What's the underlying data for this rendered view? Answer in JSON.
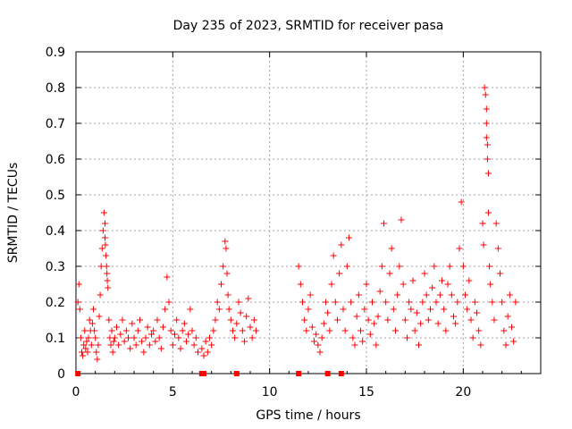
{
  "chart_data": {
    "type": "scatter",
    "title": "Day 235 of 2023, SRMTID for receiver pasa",
    "xlabel": "GPS time / hours",
    "ylabel": "SRMTID / TECUs",
    "xlim": [
      0,
      24
    ],
    "ylim": [
      0,
      0.9
    ],
    "xticks": [
      0,
      5,
      10,
      15,
      20
    ],
    "xtick_labels": [
      "0",
      "5",
      "10",
      "15",
      "20"
    ],
    "yticks": [
      0,
      0.1,
      0.2,
      0.3,
      0.4,
      0.5,
      0.6,
      0.7,
      0.8,
      0.9
    ],
    "ytick_labels": [
      "0",
      "0.1",
      "0.2",
      "0.3",
      "0.4",
      "0.5",
      "0.6",
      "0.7",
      "0.8",
      "0.9"
    ],
    "grid": true,
    "marker": "plus",
    "color": "#ff0000",
    "zero_markers_x": [
      0.1,
      6.5,
      6.6,
      8.3,
      11.5,
      13.0,
      13.7
    ],
    "series": [
      {
        "name": "SRMTID",
        "x": [
          0.1,
          0.15,
          0.2,
          0.25,
          0.3,
          0.35,
          0.4,
          0.45,
          0.5,
          0.55,
          0.6,
          0.65,
          0.7,
          0.75,
          0.8,
          0.85,
          0.9,
          0.95,
          1.0,
          1.05,
          1.1,
          1.15,
          1.2,
          1.25,
          1.3,
          1.35,
          1.4,
          1.45,
          1.5,
          1.5,
          1.52,
          1.55,
          1.58,
          1.6,
          1.62,
          1.65,
          1.7,
          1.75,
          1.8,
          1.85,
          1.9,
          1.95,
          2.0,
          2.1,
          2.2,
          2.3,
          2.4,
          2.5,
          2.6,
          2.7,
          2.8,
          2.9,
          3.0,
          3.1,
          3.2,
          3.3,
          3.4,
          3.5,
          3.6,
          3.7,
          3.8,
          3.9,
          4.0,
          4.1,
          4.2,
          4.3,
          4.4,
          4.5,
          4.6,
          4.7,
          4.8,
          4.9,
          5.0,
          5.1,
          5.2,
          5.3,
          5.4,
          5.5,
          5.6,
          5.7,
          5.8,
          5.9,
          6.0,
          6.1,
          6.2,
          6.3,
          6.5,
          6.6,
          6.7,
          6.8,
          6.9,
          7.0,
          7.1,
          7.2,
          7.3,
          7.4,
          7.5,
          7.6,
          7.7,
          7.75,
          7.8,
          7.85,
          7.9,
          8.0,
          8.1,
          8.2,
          8.3,
          8.4,
          8.5,
          8.6,
          8.7,
          8.8,
          8.9,
          9.0,
          9.1,
          9.2,
          9.3,
          11.5,
          11.6,
          11.7,
          11.8,
          11.9,
          12.0,
          12.1,
          12.2,
          12.3,
          12.4,
          12.5,
          12.6,
          12.7,
          12.8,
          12.9,
          13.0,
          13.1,
          13.2,
          13.3,
          13.4,
          13.5,
          13.6,
          13.7,
          13.8,
          13.9,
          14.0,
          14.1,
          14.2,
          14.3,
          14.4,
          14.5,
          14.6,
          14.7,
          14.8,
          14.9,
          15.0,
          15.1,
          15.2,
          15.3,
          15.4,
          15.5,
          15.6,
          15.7,
          15.8,
          15.9,
          16.0,
          16.1,
          16.2,
          16.3,
          16.4,
          16.5,
          16.6,
          16.7,
          16.8,
          16.9,
          17.0,
          17.1,
          17.2,
          17.3,
          17.4,
          17.5,
          17.6,
          17.7,
          17.8,
          17.9,
          18.0,
          18.1,
          18.2,
          18.3,
          18.4,
          18.5,
          18.6,
          18.7,
          18.8,
          18.9,
          19.0,
          19.1,
          19.2,
          19.3,
          19.4,
          19.5,
          19.6,
          19.7,
          19.8,
          19.9,
          20.0,
          20.1,
          20.2,
          20.3,
          20.4,
          20.5,
          20.6,
          20.7,
          20.8,
          20.9,
          21.0,
          21.05,
          21.1,
          21.15,
          21.2,
          21.2,
          21.2,
          21.25,
          21.25,
          21.3,
          21.3,
          21.35,
          21.4,
          21.5,
          21.6,
          21.7,
          21.8,
          21.9,
          22.0,
          22.1,
          22.2,
          22.3,
          22.4,
          22.5,
          22.6,
          22.7
        ],
        "y": [
          0.2,
          0.25,
          0.18,
          0.1,
          0.06,
          0.05,
          0.08,
          0.12,
          0.07,
          0.09,
          0.06,
          0.1,
          0.15,
          0.12,
          0.08,
          0.14,
          0.18,
          0.12,
          0.1,
          0.06,
          0.04,
          0.08,
          0.16,
          0.22,
          0.3,
          0.35,
          0.4,
          0.45,
          0.42,
          0.38,
          0.36,
          0.33,
          0.3,
          0.28,
          0.26,
          0.24,
          0.15,
          0.1,
          0.08,
          0.12,
          0.06,
          0.09,
          0.1,
          0.13,
          0.08,
          0.11,
          0.15,
          0.09,
          0.12,
          0.1,
          0.07,
          0.14,
          0.1,
          0.08,
          0.12,
          0.15,
          0.09,
          0.06,
          0.1,
          0.13,
          0.08,
          0.11,
          0.12,
          0.09,
          0.15,
          0.1,
          0.07,
          0.13,
          0.18,
          0.27,
          0.2,
          0.12,
          0.08,
          0.11,
          0.15,
          0.1,
          0.07,
          0.12,
          0.14,
          0.09,
          0.11,
          0.18,
          0.12,
          0.08,
          0.1,
          0.06,
          0.07,
          0.05,
          0.09,
          0.06,
          0.1,
          0.08,
          0.12,
          0.15,
          0.2,
          0.18,
          0.25,
          0.3,
          0.37,
          0.35,
          0.28,
          0.22,
          0.18,
          0.15,
          0.12,
          0.1,
          0.14,
          0.2,
          0.17,
          0.12,
          0.09,
          0.16,
          0.21,
          0.13,
          0.1,
          0.15,
          0.12,
          0.3,
          0.25,
          0.2,
          0.15,
          0.12,
          0.18,
          0.22,
          0.13,
          0.09,
          0.11,
          0.08,
          0.06,
          0.1,
          0.14,
          0.2,
          0.17,
          0.12,
          0.25,
          0.33,
          0.2,
          0.15,
          0.28,
          0.36,
          0.18,
          0.12,
          0.3,
          0.38,
          0.2,
          0.1,
          0.08,
          0.16,
          0.22,
          0.12,
          0.09,
          0.18,
          0.25,
          0.15,
          0.11,
          0.2,
          0.14,
          0.08,
          0.16,
          0.23,
          0.3,
          0.42,
          0.2,
          0.15,
          0.28,
          0.35,
          0.18,
          0.12,
          0.22,
          0.3,
          0.43,
          0.25,
          0.15,
          0.1,
          0.2,
          0.18,
          0.26,
          0.12,
          0.17,
          0.08,
          0.14,
          0.2,
          0.28,
          0.22,
          0.15,
          0.18,
          0.24,
          0.3,
          0.2,
          0.14,
          0.22,
          0.26,
          0.18,
          0.12,
          0.25,
          0.3,
          0.22,
          0.16,
          0.14,
          0.2,
          0.35,
          0.48,
          0.3,
          0.22,
          0.18,
          0.26,
          0.15,
          0.1,
          0.2,
          0.17,
          0.12,
          0.08,
          0.42,
          0.36,
          0.8,
          0.78,
          0.74,
          0.7,
          0.66,
          0.64,
          0.6,
          0.56,
          0.45,
          0.3,
          0.25,
          0.2,
          0.15,
          0.42,
          0.35,
          0.28,
          0.2,
          0.12,
          0.08,
          0.16,
          0.22,
          0.13,
          0.09,
          0.2
        ]
      }
    ]
  }
}
